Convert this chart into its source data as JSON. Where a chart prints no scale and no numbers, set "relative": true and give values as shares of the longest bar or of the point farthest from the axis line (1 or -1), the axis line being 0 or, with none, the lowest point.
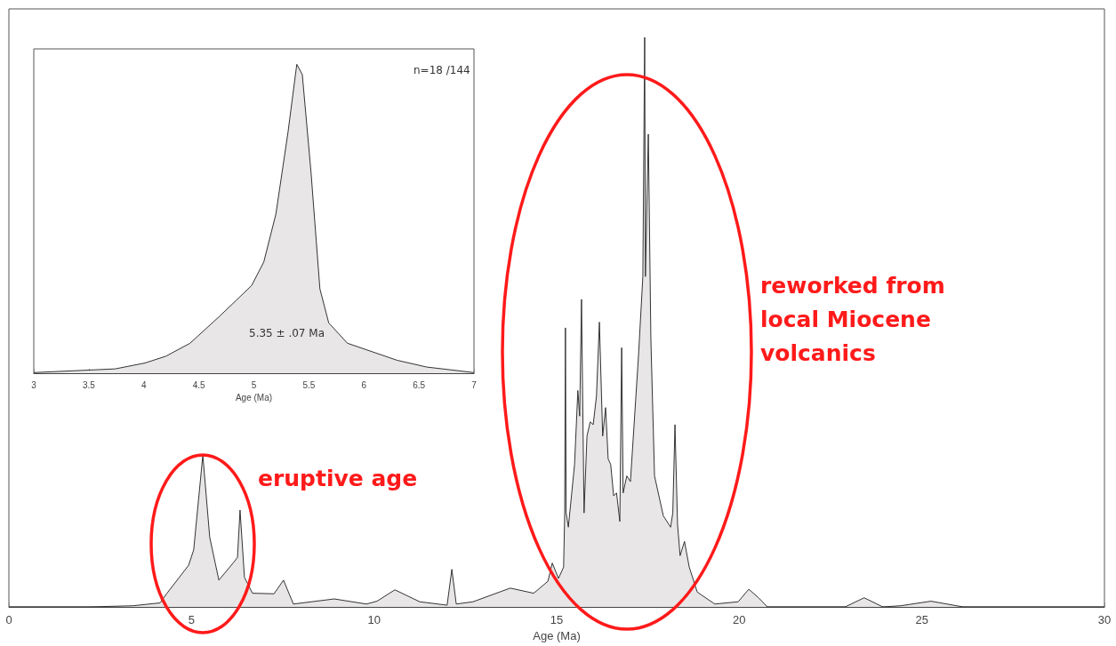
{
  "chart_data": [
    {
      "type": "area",
      "relative": true,
      "xlabel": "Age (Ma)",
      "xlim": [
        0,
        30
      ],
      "xticks": [
        0,
        5,
        10,
        15,
        20,
        25,
        30
      ],
      "color": "#e8e6e6",
      "x": [
        0,
        2.19,
        3.4,
        4.14,
        4.33,
        4.92,
        5.06,
        5.31,
        5.5,
        5.75,
        6.14,
        6.26,
        6.33,
        6.45,
        6.67,
        7.26,
        7.52,
        7.79,
        8.91,
        9.79,
        10.08,
        10.57,
        11.25,
        12.0,
        12.13,
        12.25,
        12.71,
        13.73,
        14.37,
        14.76,
        14.88,
        15.05,
        15.19,
        15.22,
        15.24,
        15.26,
        15.32,
        15.49,
        15.58,
        15.63,
        15.68,
        15.75,
        15.83,
        15.92,
        16.0,
        16.09,
        16.17,
        16.26,
        16.34,
        16.41,
        16.48,
        16.56,
        16.64,
        16.73,
        16.78,
        16.82,
        16.92,
        17.02,
        17.24,
        17.36,
        17.41,
        17.43,
        17.51,
        17.58,
        17.68,
        17.92,
        18.12,
        18.18,
        18.24,
        18.31,
        18.38,
        18.5,
        18.63,
        18.85,
        19.33,
        19.97,
        20.26,
        20.53,
        20.77,
        22.9,
        23.42,
        23.93,
        24.42,
        25.25,
        26.13,
        30
      ],
      "values": [
        0,
        0,
        0.002,
        0.007,
        0.024,
        0.073,
        0.1,
        0.266,
        0.122,
        0.047,
        0.077,
        0.087,
        0.17,
        0.052,
        0.024,
        0.023,
        0.047,
        0.005,
        0.014,
        0.005,
        0.01,
        0.03,
        0.009,
        0.003,
        0.066,
        0.005,
        0.009,
        0.033,
        0.024,
        0.045,
        0.077,
        0.05,
        0.07,
        0.165,
        0.49,
        0.165,
        0.14,
        0.25,
        0.38,
        0.335,
        0.54,
        0.165,
        0.3,
        0.325,
        0.32,
        0.37,
        0.5,
        0.3,
        0.35,
        0.26,
        0.25,
        0.195,
        0.2,
        0.15,
        0.455,
        0.2,
        0.23,
        0.22,
        0.44,
        0.58,
        1.0,
        0.58,
        0.83,
        0.47,
        0.23,
        0.16,
        0.14,
        0.165,
        0.32,
        0.145,
        0.09,
        0.115,
        0.07,
        0.026,
        0.005,
        0.009,
        0.031,
        0.016,
        0,
        0,
        0.016,
        0,
        0.002,
        0.01,
        0,
        0
      ],
      "annotations": [
        "eruptive age",
        "reworked from local Miocene volcanics"
      ]
    },
    {
      "type": "area",
      "relative": true,
      "xlabel": "Age (Ma)",
      "xlim": [
        3,
        7
      ],
      "xticks": [
        3,
        3.5,
        4,
        4.5,
        5,
        5.5,
        6,
        6.5,
        7
      ],
      "color": "#e8e6e6",
      "x": [
        3,
        3.74,
        4.01,
        4.2,
        4.42,
        4.69,
        4.98,
        5.09,
        5.2,
        5.31,
        5.39,
        5.44,
        5.52,
        5.6,
        5.68,
        5.85,
        6.03,
        6.3,
        6.57,
        7
      ],
      "values": [
        0.002,
        0.014,
        0.033,
        0.055,
        0.097,
        0.185,
        0.284,
        0.36,
        0.515,
        0.78,
        1.0,
        0.967,
        0.647,
        0.273,
        0.163,
        0.097,
        0.075,
        0.042,
        0.02,
        0.002
      ],
      "annotations": [
        "n=18 /144",
        "5.35 ± .07 Ma"
      ]
    }
  ]
}
